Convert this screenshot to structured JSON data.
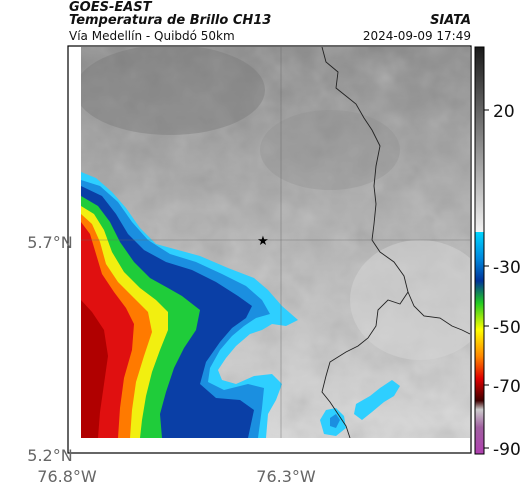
{
  "header": {
    "satellite": "GOES-EAST",
    "product": "Temperatura de Brillo CH13",
    "region": "Vía Medellín - Quibdó 50km",
    "brand": "SIATA",
    "timestamp": "2024-09-09 17:49"
  },
  "map": {
    "lat_labels": [
      "5.7°N",
      "5.2°N"
    ],
    "lon_labels": [
      "76.8°W",
      "76.3°W"
    ],
    "marker": "star"
  },
  "colorbar": {
    "labels": [
      "20",
      "-30",
      "-50",
      "-70",
      "-90"
    ],
    "colors": {
      "warm_gray_top": "#1a1a1a",
      "warm_gray_bottom": "#f2f2f2",
      "cyan": "#00d5ff",
      "blue": "#003399",
      "green": "#22cc22",
      "yellow": "#ffff00",
      "red": "#e00000",
      "darkred": "#400000",
      "magenta": "#a030a0"
    }
  }
}
